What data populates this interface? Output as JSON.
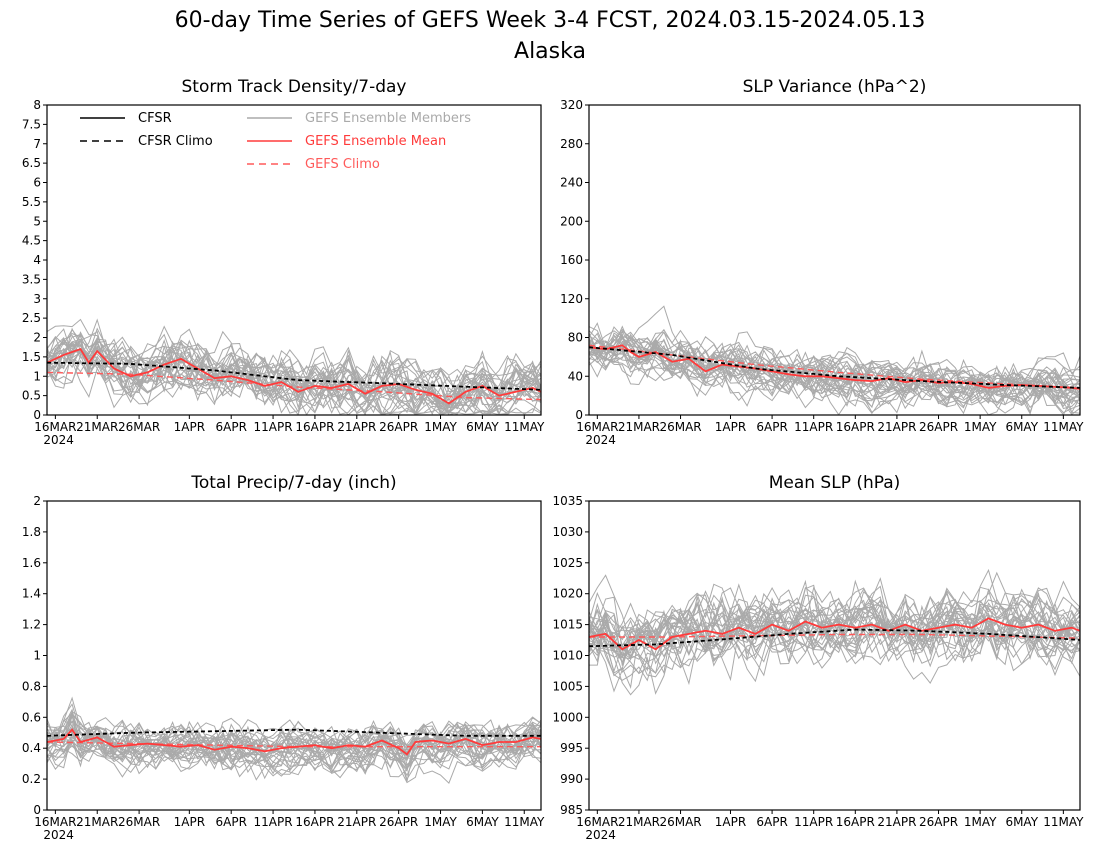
{
  "figure": {
    "title_line1": "60-day Time Series of GEFS Week 3-4 FCST, 2024.03.15-2024.05.13",
    "title_line2": "Alaska"
  },
  "colors": {
    "cfsr": "#000000",
    "members": "#aaaaaa",
    "ens_mean": "#ff3b3b",
    "gefs_climo": "#ff5a5a"
  },
  "legend": [
    {
      "label": "CFSR",
      "style": "solid",
      "color": "#000000"
    },
    {
      "label": "CFSR Climo",
      "style": "dashed",
      "color": "#000000"
    },
    {
      "label": "GEFS Ensemble Members",
      "style": "solid",
      "color": "#aaaaaa"
    },
    {
      "label": "GEFS Ensemble Mean",
      "style": "solid",
      "color": "#ff3b3b"
    },
    {
      "label": "GEFS Climo",
      "style": "dashed",
      "color": "#ff5a5a"
    }
  ],
  "x_ticks": [
    "16MAR",
    "21MAR",
    "26MAR",
    "1APR",
    "6APR",
    "11APR",
    "16APR",
    "21APR",
    "26APR",
    "1MAY",
    "6MAY",
    "11MAY"
  ],
  "x_year": "2024",
  "chart_data": [
    {
      "type": "line",
      "title": "Storm Track Density/7-day",
      "ylim": [
        0,
        8
      ],
      "yticks": [
        "0",
        "0.5",
        "1",
        "1.5",
        "2",
        "2.5",
        "3",
        "3.5",
        "4",
        "4.5",
        "5",
        "5.5",
        "6",
        "6.5",
        "7",
        "7.5",
        "8"
      ],
      "x": [
        "2024-03-15",
        "2024-05-13"
      ],
      "n_members": 31,
      "cfsr_climo": [
        [
          0,
          1.35
        ],
        [
          10,
          1.32
        ],
        [
          20,
          1.15
        ],
        [
          30,
          0.9
        ],
        [
          40,
          0.82
        ],
        [
          50,
          0.73
        ],
        [
          59,
          0.65
        ]
      ],
      "ens_mean": [
        [
          0,
          1.35
        ],
        [
          2,
          1.55
        ],
        [
          4,
          1.7
        ],
        [
          5,
          1.35
        ],
        [
          6,
          1.65
        ],
        [
          8,
          1.2
        ],
        [
          10,
          1.0
        ],
        [
          12,
          1.1
        ],
        [
          14,
          1.3
        ],
        [
          16,
          1.45
        ],
        [
          18,
          1.2
        ],
        [
          20,
          0.95
        ],
        [
          22,
          1.0
        ],
        [
          24,
          0.9
        ],
        [
          26,
          0.75
        ],
        [
          28,
          0.85
        ],
        [
          30,
          0.6
        ],
        [
          32,
          0.75
        ],
        [
          34,
          0.7
        ],
        [
          36,
          0.8
        ],
        [
          38,
          0.55
        ],
        [
          40,
          0.75
        ],
        [
          42,
          0.8
        ],
        [
          44,
          0.65
        ],
        [
          46,
          0.55
        ],
        [
          48,
          0.3
        ],
        [
          50,
          0.6
        ],
        [
          52,
          0.75
        ],
        [
          54,
          0.5
        ],
        [
          56,
          0.6
        ],
        [
          58,
          0.7
        ],
        [
          59,
          0.6
        ]
      ],
      "gefs_climo": [
        [
          0,
          1.1
        ],
        [
          10,
          1.05
        ],
        [
          20,
          0.9
        ],
        [
          30,
          0.72
        ],
        [
          40,
          0.6
        ],
        [
          50,
          0.45
        ],
        [
          59,
          0.4
        ]
      ],
      "member_stats": {
        "mean": 1.1,
        "spread": 0.55,
        "trend": -0.011
      }
    },
    {
      "type": "line",
      "title": "SLP Variance (hPa^2)",
      "ylim": [
        0,
        320
      ],
      "yticks": [
        "0",
        "40",
        "80",
        "120",
        "160",
        "200",
        "240",
        "280",
        "320"
      ],
      "x": [
        "2024-03-15",
        "2024-05-13"
      ],
      "n_members": 31,
      "cfsr_climo": [
        [
          0,
          70
        ],
        [
          10,
          62
        ],
        [
          20,
          48
        ],
        [
          30,
          40
        ],
        [
          40,
          35
        ],
        [
          50,
          31
        ],
        [
          59,
          28
        ]
      ],
      "ens_mean": [
        [
          0,
          70
        ],
        [
          2,
          68
        ],
        [
          4,
          72
        ],
        [
          5,
          65
        ],
        [
          6,
          60
        ],
        [
          8,
          65
        ],
        [
          10,
          55
        ],
        [
          12,
          58
        ],
        [
          14,
          45
        ],
        [
          16,
          52
        ],
        [
          18,
          50
        ],
        [
          20,
          48
        ],
        [
          22,
          45
        ],
        [
          24,
          42
        ],
        [
          26,
          40
        ],
        [
          28,
          40
        ],
        [
          30,
          38
        ],
        [
          32,
          36
        ],
        [
          34,
          35
        ],
        [
          36,
          38
        ],
        [
          38,
          34
        ],
        [
          40,
          36
        ],
        [
          42,
          33
        ],
        [
          44,
          34
        ],
        [
          46,
          32
        ],
        [
          48,
          28
        ],
        [
          50,
          30
        ],
        [
          52,
          31
        ],
        [
          54,
          30
        ],
        [
          56,
          29
        ],
        [
          58,
          28
        ],
        [
          59,
          27
        ]
      ],
      "gefs_climo": [
        [
          0,
          72
        ],
        [
          10,
          62
        ],
        [
          20,
          52
        ],
        [
          30,
          44
        ],
        [
          40,
          37
        ],
        [
          50,
          32
        ],
        [
          59,
          28
        ]
      ],
      "member_stats": {
        "mean": 55,
        "spread": 18,
        "trend": -0.5
      }
    },
    {
      "type": "line",
      "title": "Total Precip/7-day (inch)",
      "ylim": [
        0,
        2
      ],
      "yticks": [
        "0",
        "0.2",
        "0.4",
        "0.6",
        "0.8",
        "1",
        "1.2",
        "1.4",
        "1.6",
        "1.8",
        "2"
      ],
      "x": [
        "2024-03-15",
        "2024-05-13"
      ],
      "n_members": 31,
      "cfsr_climo": [
        [
          0,
          0.48
        ],
        [
          10,
          0.5
        ],
        [
          20,
          0.51
        ],
        [
          30,
          0.52
        ],
        [
          40,
          0.5
        ],
        [
          50,
          0.48
        ],
        [
          59,
          0.48
        ]
      ],
      "ens_mean": [
        [
          0,
          0.44
        ],
        [
          2,
          0.46
        ],
        [
          3,
          0.52
        ],
        [
          4,
          0.44
        ],
        [
          6,
          0.47
        ],
        [
          8,
          0.41
        ],
        [
          10,
          0.42
        ],
        [
          12,
          0.43
        ],
        [
          14,
          0.42
        ],
        [
          16,
          0.41
        ],
        [
          18,
          0.42
        ],
        [
          20,
          0.39
        ],
        [
          22,
          0.41
        ],
        [
          24,
          0.4
        ],
        [
          26,
          0.38
        ],
        [
          28,
          0.4
        ],
        [
          30,
          0.41
        ],
        [
          32,
          0.42
        ],
        [
          34,
          0.4
        ],
        [
          36,
          0.42
        ],
        [
          38,
          0.41
        ],
        [
          40,
          0.45
        ],
        [
          42,
          0.4
        ],
        [
          43,
          0.36
        ],
        [
          44,
          0.44
        ],
        [
          46,
          0.45
        ],
        [
          48,
          0.43
        ],
        [
          50,
          0.46
        ],
        [
          52,
          0.42
        ],
        [
          54,
          0.44
        ],
        [
          56,
          0.44
        ],
        [
          58,
          0.47
        ],
        [
          59,
          0.46
        ]
      ],
      "gefs_climo": [
        [
          0,
          0.44
        ],
        [
          10,
          0.43
        ],
        [
          20,
          0.42
        ],
        [
          30,
          0.41
        ],
        [
          40,
          0.41
        ],
        [
          50,
          0.41
        ],
        [
          59,
          0.41
        ]
      ],
      "member_stats": {
        "mean": 0.42,
        "spread": 0.11,
        "trend": 0.0
      }
    },
    {
      "type": "line",
      "title": "Mean SLP (hPa)",
      "ylim": [
        985,
        1035
      ],
      "yticks": [
        "985",
        "990",
        "995",
        "1000",
        "1005",
        "1010",
        "1015",
        "1020",
        "1025",
        "1030",
        "1035"
      ],
      "x": [
        "2024-03-15",
        "2024-05-13"
      ],
      "n_members": 31,
      "cfsr_climo": [
        [
          0,
          1011.5
        ],
        [
          8,
          1011.8
        ],
        [
          16,
          1012.6
        ],
        [
          24,
          1013.5
        ],
        [
          32,
          1014.2
        ],
        [
          40,
          1014.0
        ],
        [
          48,
          1013.5
        ],
        [
          56,
          1012.8
        ],
        [
          59,
          1012.5
        ]
      ],
      "ens_mean": [
        [
          0,
          1013
        ],
        [
          2,
          1013.5
        ],
        [
          4,
          1011
        ],
        [
          6,
          1012.5
        ],
        [
          8,
          1011
        ],
        [
          10,
          1013
        ],
        [
          12,
          1013.5
        ],
        [
          14,
          1014
        ],
        [
          16,
          1013.5
        ],
        [
          18,
          1014.5
        ],
        [
          20,
          1013.5
        ],
        [
          22,
          1015
        ],
        [
          24,
          1014
        ],
        [
          26,
          1015.5
        ],
        [
          28,
          1014.5
        ],
        [
          30,
          1015
        ],
        [
          32,
          1014.5
        ],
        [
          34,
          1015
        ],
        [
          36,
          1014
        ],
        [
          38,
          1015
        ],
        [
          40,
          1014
        ],
        [
          42,
          1014.5
        ],
        [
          44,
          1015
        ],
        [
          46,
          1014.5
        ],
        [
          48,
          1016
        ],
        [
          50,
          1015
        ],
        [
          52,
          1014.5
        ],
        [
          54,
          1015
        ],
        [
          56,
          1014
        ],
        [
          58,
          1014.5
        ],
        [
          59,
          1014
        ]
      ],
      "gefs_climo": [
        [
          0,
          1013
        ],
        [
          10,
          1013
        ],
        [
          20,
          1013.2
        ],
        [
          30,
          1013.4
        ],
        [
          40,
          1013.4
        ],
        [
          50,
          1013.1
        ],
        [
          59,
          1012.8
        ]
      ],
      "member_stats": {
        "mean": 1013,
        "spread": 4.2,
        "trend": 0.0
      }
    }
  ]
}
